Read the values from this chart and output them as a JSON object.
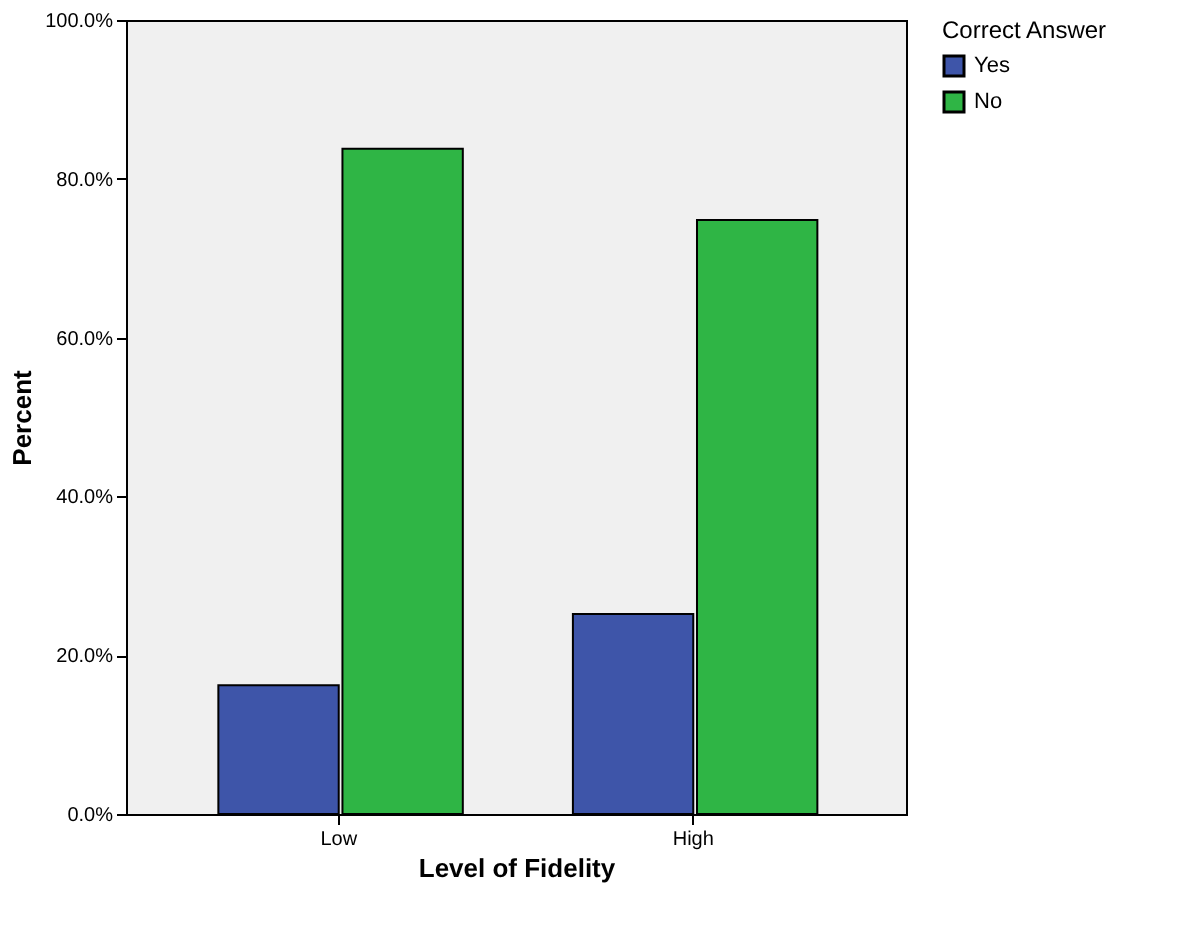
{
  "chart_data": {
    "type": "bar",
    "xlabel": "Level of Fidelity",
    "ylabel": "Percent",
    "legend_title": "Correct Answer",
    "categories": [
      "Low",
      "High"
    ],
    "series": [
      {
        "name": "Yes",
        "color": "#3e55a9",
        "values": [
          16.2,
          25.2
        ]
      },
      {
        "name": "No",
        "color": "#2fb545",
        "values": [
          83.8,
          74.8
        ]
      }
    ],
    "ylim": [
      0,
      100
    ],
    "yticks": [
      {
        "value": 0,
        "label": "0.0%"
      },
      {
        "value": 20,
        "label": "20.0%"
      },
      {
        "value": 40,
        "label": "40.0%"
      },
      {
        "value": 60,
        "label": "60.0%"
      },
      {
        "value": 80,
        "label": "80.0%"
      },
      {
        "value": 100,
        "label": "100.0%"
      }
    ],
    "grid": false,
    "legend": "top right"
  }
}
